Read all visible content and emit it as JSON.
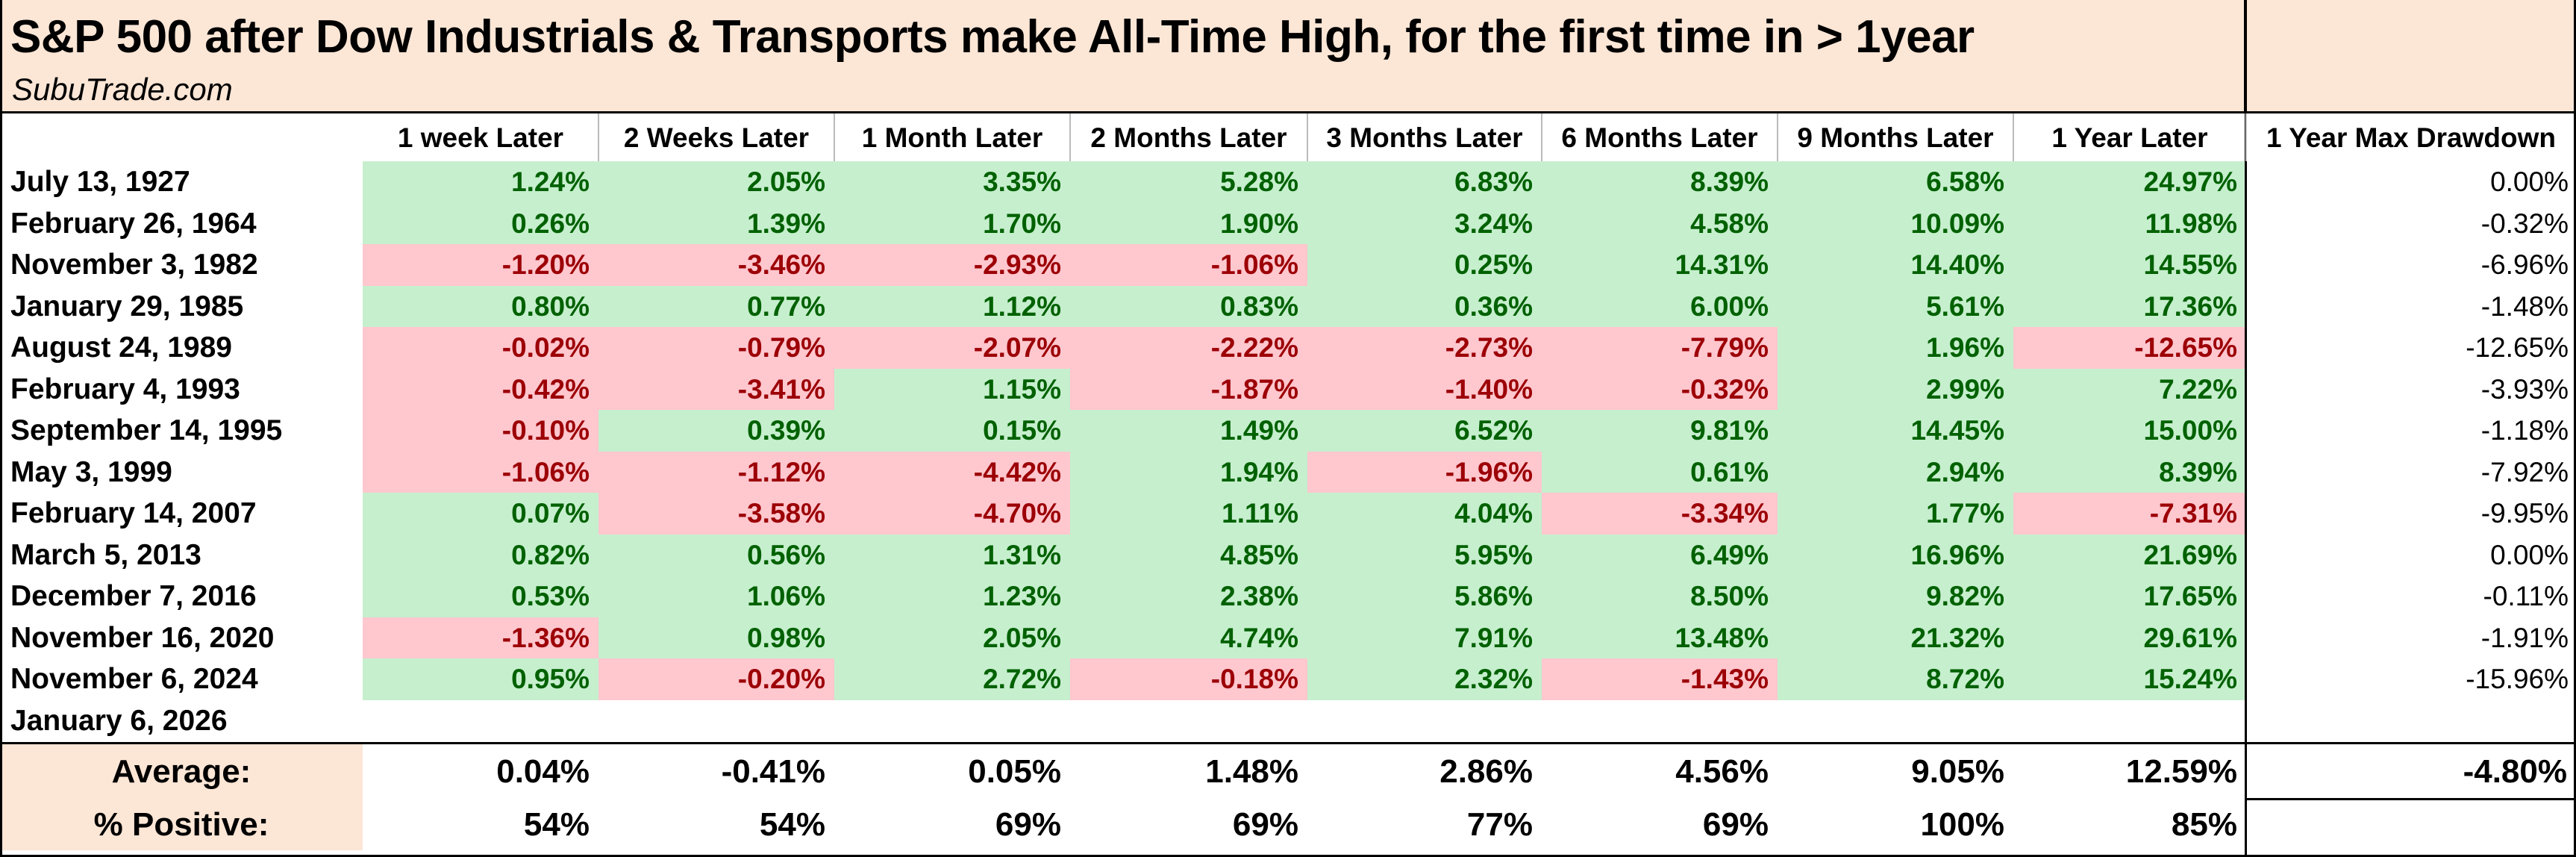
{
  "title": "S&P 500 after Dow Industrials & Transports make All-Time High, for the first time in > 1year",
  "subtitle": "SubuTrade.com",
  "colors": {
    "header_bg": "#fce6d6",
    "pos_bg": "#c6efce",
    "pos_fg": "#006100",
    "neg_bg": "#ffc7ce",
    "neg_fg": "#9c0006"
  },
  "columns": [
    "1 week Later",
    "2 Weeks Later",
    "1 Month Later",
    "2 Months Later",
    "3 Months Later",
    "6 Months Later",
    "9 Months Later",
    "1 Year Later",
    "1 Year Max Drawdown"
  ],
  "rows": [
    {
      "date": "July 13, 1927",
      "values": [
        "1.24%",
        "2.05%",
        "3.35%",
        "5.28%",
        "6.83%",
        "8.39%",
        "6.58%",
        "24.97%"
      ],
      "drawdown": "0.00%"
    },
    {
      "date": "February 26, 1964",
      "values": [
        "0.26%",
        "1.39%",
        "1.70%",
        "1.90%",
        "3.24%",
        "4.58%",
        "10.09%",
        "11.98%"
      ],
      "drawdown": "-0.32%"
    },
    {
      "date": "November 3, 1982",
      "values": [
        "-1.20%",
        "-3.46%",
        "-2.93%",
        "-1.06%",
        "0.25%",
        "14.31%",
        "14.40%",
        "14.55%"
      ],
      "drawdown": "-6.96%"
    },
    {
      "date": "January 29, 1985",
      "values": [
        "0.80%",
        "0.77%",
        "1.12%",
        "0.83%",
        "0.36%",
        "6.00%",
        "5.61%",
        "17.36%"
      ],
      "drawdown": "-1.48%"
    },
    {
      "date": "August 24, 1989",
      "values": [
        "-0.02%",
        "-0.79%",
        "-2.07%",
        "-2.22%",
        "-2.73%",
        "-7.79%",
        "1.96%",
        "-12.65%"
      ],
      "drawdown": "-12.65%"
    },
    {
      "date": "February 4, 1993",
      "values": [
        "-0.42%",
        "-3.41%",
        "1.15%",
        "-1.87%",
        "-1.40%",
        "-0.32%",
        "2.99%",
        "7.22%"
      ],
      "drawdown": "-3.93%"
    },
    {
      "date": "September 14, 1995",
      "values": [
        "-0.10%",
        "0.39%",
        "0.15%",
        "1.49%",
        "6.52%",
        "9.81%",
        "14.45%",
        "15.00%"
      ],
      "drawdown": "-1.18%"
    },
    {
      "date": "May 3, 1999",
      "values": [
        "-1.06%",
        "-1.12%",
        "-4.42%",
        "1.94%",
        "-1.96%",
        "0.61%",
        "2.94%",
        "8.39%"
      ],
      "drawdown": "-7.92%"
    },
    {
      "date": "February 14, 2007",
      "values": [
        "0.07%",
        "-3.58%",
        "-4.70%",
        "1.11%",
        "4.04%",
        "-3.34%",
        "1.77%",
        "-7.31%"
      ],
      "drawdown": "-9.95%"
    },
    {
      "date": "March 5, 2013",
      "values": [
        "0.82%",
        "0.56%",
        "1.31%",
        "4.85%",
        "5.95%",
        "6.49%",
        "16.96%",
        "21.69%"
      ],
      "drawdown": "0.00%"
    },
    {
      "date": "December 7, 2016",
      "values": [
        "0.53%",
        "1.06%",
        "1.23%",
        "2.38%",
        "5.86%",
        "8.50%",
        "9.82%",
        "17.65%"
      ],
      "drawdown": "-0.11%"
    },
    {
      "date": "November 16, 2020",
      "values": [
        "-1.36%",
        "0.98%",
        "2.05%",
        "4.74%",
        "7.91%",
        "13.48%",
        "21.32%",
        "29.61%"
      ],
      "drawdown": "-1.91%"
    },
    {
      "date": "November 6, 2024",
      "values": [
        "0.95%",
        "-0.20%",
        "2.72%",
        "-0.18%",
        "2.32%",
        "-1.43%",
        "8.72%",
        "15.24%"
      ],
      "drawdown": "-15.96%"
    },
    {
      "date": "January 6, 2026",
      "values": [],
      "drawdown": ""
    }
  ],
  "summary": {
    "average": {
      "label": "Average:",
      "values": [
        "0.04%",
        "-0.41%",
        "0.05%",
        "1.48%",
        "2.86%",
        "4.56%",
        "9.05%",
        "12.59%"
      ],
      "drawdown": "-4.80%"
    },
    "positive": {
      "label": "% Positive:",
      "values": [
        "54%",
        "54%",
        "69%",
        "69%",
        "77%",
        "69%",
        "100%",
        "85%"
      ]
    }
  }
}
